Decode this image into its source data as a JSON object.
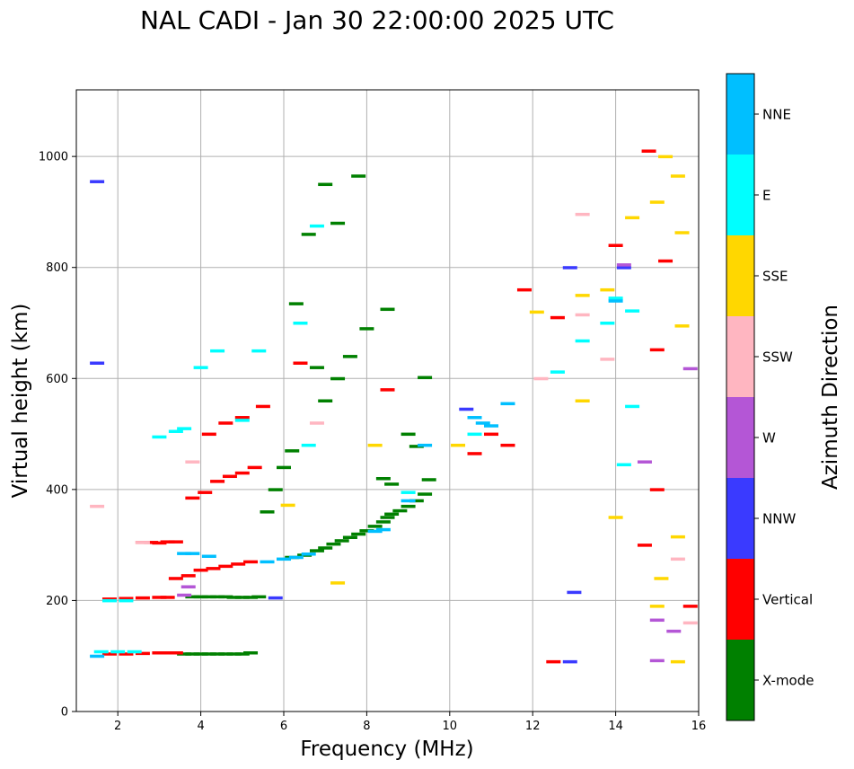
{
  "chart_data": {
    "type": "scatter",
    "title": "NAL CADI - Jan 30 22:00:00 2025 UTC",
    "xlabel": "Frequency (MHz)",
    "ylabel": "Virtual height (km)",
    "xlim": [
      1,
      16
    ],
    "ylim": [
      0,
      1120
    ],
    "xticks": [
      "2",
      "4",
      "6",
      "8",
      "10",
      "12",
      "14",
      "16"
    ],
    "yticks": [
      "0",
      "200",
      "400",
      "600",
      "800",
      "1000"
    ],
    "grid": true,
    "colorbar": {
      "label": "Azimuth Direction",
      "categories": [
        {
          "name": "X-mode",
          "color": "#008000"
        },
        {
          "name": "Vertical",
          "color": "#ff0000"
        },
        {
          "name": "NNW",
          "color": "#3a3aff"
        },
        {
          "name": "W",
          "color": "#b456d6"
        },
        {
          "name": "SSW",
          "color": "#ffb6c1"
        },
        {
          "name": "SSE",
          "color": "#ffd700"
        },
        {
          "name": "E",
          "color": "#00ffff"
        },
        {
          "name": "NNE",
          "color": "#00bfff"
        }
      ]
    },
    "series": [
      {
        "name": "X-mode",
        "points": [
          [
            3.6,
            104
          ],
          [
            3.8,
            104
          ],
          [
            4.0,
            104
          ],
          [
            4.2,
            104
          ],
          [
            4.4,
            104
          ],
          [
            4.6,
            104
          ],
          [
            4.8,
            104
          ],
          [
            5.0,
            104
          ],
          [
            5.2,
            106
          ],
          [
            3.8,
            207
          ],
          [
            4.0,
            207
          ],
          [
            4.2,
            207
          ],
          [
            4.4,
            207
          ],
          [
            4.6,
            207
          ],
          [
            4.8,
            206
          ],
          [
            5.0,
            206
          ],
          [
            5.2,
            206
          ],
          [
            5.4,
            207
          ],
          [
            6.2,
            278
          ],
          [
            6.5,
            282
          ],
          [
            6.8,
            290
          ],
          [
            7.0,
            295
          ],
          [
            7.2,
            302
          ],
          [
            7.4,
            308
          ],
          [
            7.6,
            314
          ],
          [
            7.8,
            320
          ],
          [
            8.0,
            326
          ],
          [
            8.2,
            334
          ],
          [
            8.4,
            342
          ],
          [
            8.5,
            350
          ],
          [
            8.6,
            356
          ],
          [
            8.8,
            362
          ],
          [
            9.0,
            370
          ],
          [
            9.2,
            380
          ],
          [
            9.4,
            392
          ],
          [
            9.5,
            418
          ],
          [
            6.0,
            440
          ],
          [
            6.2,
            470
          ],
          [
            5.8,
            400
          ],
          [
            5.6,
            360
          ],
          [
            7.0,
            560
          ],
          [
            7.3,
            600
          ],
          [
            7.6,
            640
          ],
          [
            8.5,
            725
          ],
          [
            9.4,
            602
          ],
          [
            9.0,
            500
          ],
          [
            9.2,
            478
          ],
          [
            8.4,
            420
          ],
          [
            8.6,
            410
          ],
          [
            6.3,
            735
          ],
          [
            6.6,
            860
          ],
          [
            7.0,
            950
          ],
          [
            7.3,
            880
          ],
          [
            7.8,
            965
          ],
          [
            8.0,
            690
          ],
          [
            6.8,
            620
          ]
        ]
      },
      {
        "name": "Vertical",
        "points": [
          [
            1.8,
            104
          ],
          [
            2.2,
            104
          ],
          [
            2.6,
            105
          ],
          [
            3.0,
            106
          ],
          [
            3.2,
            106
          ],
          [
            3.4,
            106
          ],
          [
            1.8,
            203
          ],
          [
            2.2,
            204
          ],
          [
            2.6,
            205
          ],
          [
            3.0,
            206
          ],
          [
            3.2,
            206
          ],
          [
            2.6,
            305
          ],
          [
            2.8,
            305
          ],
          [
            3.0,
            304
          ],
          [
            3.2,
            306
          ],
          [
            3.4,
            306
          ],
          [
            3.4,
            240
          ],
          [
            3.7,
            245
          ],
          [
            4.0,
            255
          ],
          [
            4.3,
            258
          ],
          [
            4.6,
            262
          ],
          [
            4.9,
            266
          ],
          [
            5.2,
            270
          ],
          [
            3.8,
            385
          ],
          [
            4.1,
            395
          ],
          [
            4.4,
            415
          ],
          [
            4.7,
            424
          ],
          [
            5.0,
            430
          ],
          [
            5.3,
            440
          ],
          [
            4.2,
            500
          ],
          [
            4.6,
            520
          ],
          [
            5.0,
            530
          ],
          [
            5.5,
            550
          ],
          [
            6.4,
            628
          ],
          [
            8.5,
            580
          ],
          [
            10.6,
            465
          ],
          [
            11.0,
            500
          ],
          [
            11.4,
            480
          ],
          [
            11.8,
            760
          ],
          [
            12.5,
            90
          ],
          [
            12.6,
            710
          ],
          [
            14.8,
            1010
          ],
          [
            15.2,
            812
          ],
          [
            15.0,
            652
          ],
          [
            15.0,
            400
          ],
          [
            14.7,
            300
          ],
          [
            15.8,
            190
          ],
          [
            14.0,
            840
          ]
        ]
      },
      {
        "name": "NNW",
        "points": [
          [
            1.5,
            955
          ],
          [
            1.5,
            628
          ],
          [
            5.8,
            205
          ],
          [
            10.4,
            545
          ],
          [
            12.9,
            90
          ],
          [
            13.0,
            215
          ],
          [
            12.9,
            800
          ],
          [
            14.2,
            800
          ]
        ]
      },
      {
        "name": "W",
        "points": [
          [
            3.6,
            210
          ],
          [
            3.7,
            225
          ],
          [
            14.2,
            805
          ],
          [
            15.8,
            618
          ],
          [
            15.4,
            145
          ],
          [
            15.0,
            165
          ],
          [
            15.0,
            92
          ],
          [
            14.7,
            450
          ]
        ]
      },
      {
        "name": "SSW",
        "points": [
          [
            1.5,
            370
          ],
          [
            2.6,
            305
          ],
          [
            3.8,
            450
          ],
          [
            6.8,
            520
          ],
          [
            13.2,
            896
          ],
          [
            13.2,
            715
          ],
          [
            13.8,
            635
          ],
          [
            15.5,
            275
          ],
          [
            15.8,
            160
          ],
          [
            12.2,
            600
          ]
        ]
      },
      {
        "name": "SSE",
        "points": [
          [
            6.1,
            372
          ],
          [
            7.3,
            232
          ],
          [
            8.2,
            480
          ],
          [
            10.2,
            480
          ],
          [
            13.2,
            750
          ],
          [
            13.8,
            760
          ],
          [
            14.4,
            890
          ],
          [
            15.1,
            240
          ],
          [
            15.0,
            190
          ],
          [
            15.2,
            1000
          ],
          [
            15.5,
            965
          ],
          [
            15.6,
            863
          ],
          [
            15.0,
            918
          ],
          [
            15.6,
            695
          ],
          [
            15.5,
            315
          ],
          [
            15.5,
            90
          ],
          [
            12.1,
            720
          ],
          [
            13.2,
            560
          ],
          [
            14.0,
            350
          ]
        ]
      },
      {
        "name": "E",
        "points": [
          [
            1.6,
            108
          ],
          [
            2.0,
            108
          ],
          [
            2.4,
            108
          ],
          [
            1.8,
            200
          ],
          [
            2.2,
            200
          ],
          [
            3.0,
            495
          ],
          [
            3.4,
            505
          ],
          [
            3.6,
            510
          ],
          [
            4.0,
            620
          ],
          [
            4.4,
            650
          ],
          [
            5.0,
            525
          ],
          [
            5.4,
            650
          ],
          [
            6.4,
            700
          ],
          [
            6.6,
            480
          ],
          [
            6.8,
            875
          ],
          [
            9.0,
            395
          ],
          [
            10.6,
            500
          ],
          [
            12.6,
            612
          ],
          [
            13.2,
            668
          ],
          [
            13.8,
            700
          ],
          [
            14.0,
            745
          ],
          [
            14.2,
            445
          ],
          [
            14.4,
            550
          ],
          [
            14.4,
            722
          ]
        ]
      },
      {
        "name": "NNE",
        "points": [
          [
            1.5,
            100
          ],
          [
            3.6,
            285
          ],
          [
            3.8,
            285
          ],
          [
            4.2,
            280
          ],
          [
            5.6,
            270
          ],
          [
            6.0,
            275
          ],
          [
            6.3,
            278
          ],
          [
            6.6,
            284
          ],
          [
            8.2,
            325
          ],
          [
            8.4,
            328
          ],
          [
            9.0,
            380
          ],
          [
            9.4,
            480
          ],
          [
            10.6,
            530
          ],
          [
            10.8,
            520
          ],
          [
            11.0,
            515
          ],
          [
            11.4,
            555
          ],
          [
            14.0,
            740
          ]
        ]
      }
    ]
  }
}
